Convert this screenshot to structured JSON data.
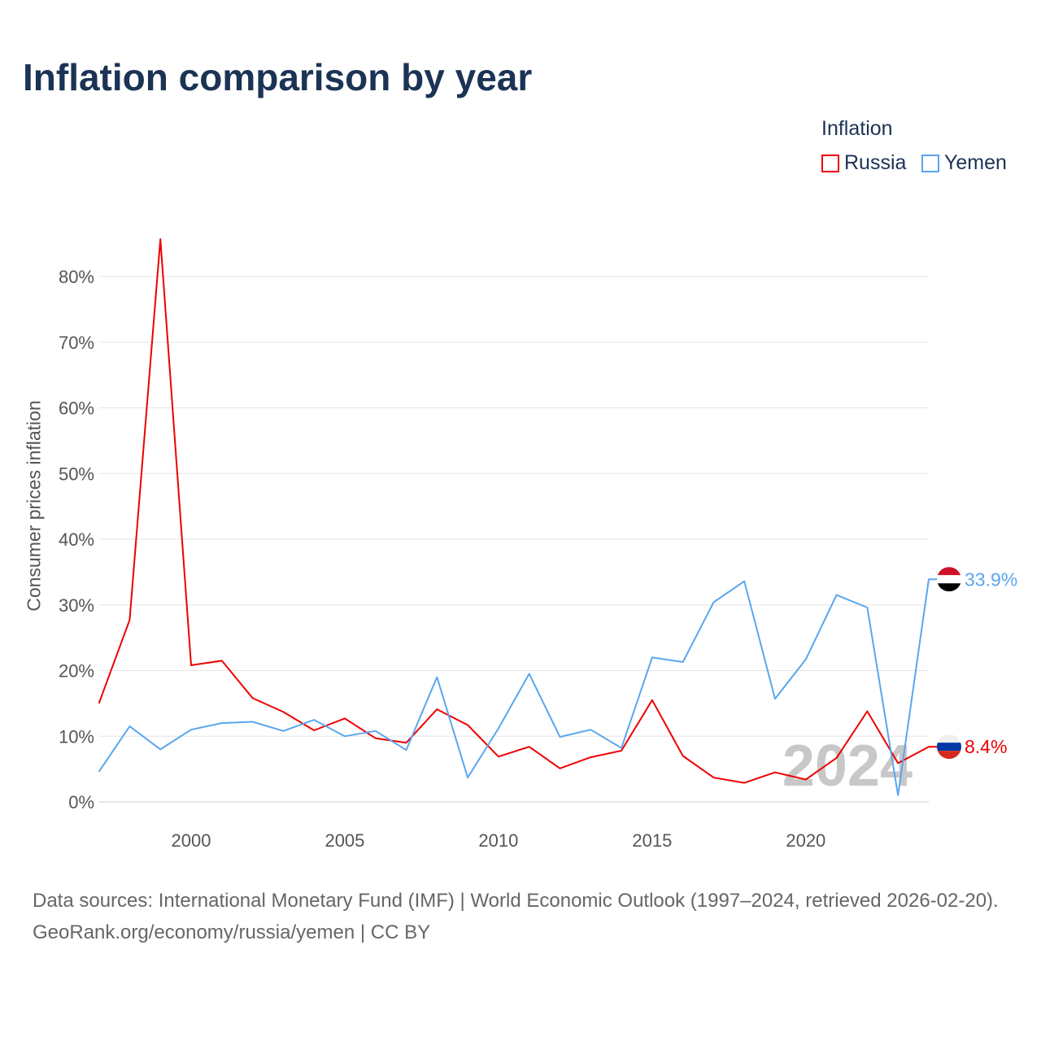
{
  "chart_data": {
    "type": "line",
    "title": "Inflation comparison by year",
    "ylabel": "Consumer prices inflation",
    "xlabel": "",
    "legend_title": "Inflation",
    "legend_position": "top-right",
    "ylim": [
      0,
      85
    ],
    "xlim": [
      1997,
      2024
    ],
    "yticks": [
      "0%",
      "10%",
      "20%",
      "30%",
      "40%",
      "50%",
      "60%",
      "70%",
      "80%"
    ],
    "xticks": [
      "2000",
      "2005",
      "2010",
      "2015",
      "2020"
    ],
    "x": [
      1997,
      1998,
      1999,
      2000,
      2001,
      2002,
      2003,
      2004,
      2005,
      2006,
      2007,
      2008,
      2009,
      2010,
      2011,
      2012,
      2013,
      2014,
      2015,
      2016,
      2017,
      2018,
      2019,
      2020,
      2021,
      2022,
      2023,
      2024
    ],
    "series": [
      {
        "name": "Russia",
        "color": "#ee0000",
        "end_label": "8.4%",
        "values": [
          15.0,
          27.7,
          85.7,
          20.8,
          21.5,
          15.8,
          13.7,
          10.9,
          12.7,
          9.7,
          9.0,
          14.1,
          11.7,
          6.9,
          8.4,
          5.1,
          6.8,
          7.8,
          15.5,
          7.0,
          3.7,
          2.9,
          4.5,
          3.4,
          6.7,
          13.8,
          5.9,
          8.4
        ]
      },
      {
        "name": "Yemen",
        "color": "#5aa6ee",
        "end_label": "33.9%",
        "values": [
          4.6,
          11.5,
          8.0,
          11.0,
          12.0,
          12.2,
          10.8,
          12.5,
          10.0,
          10.8,
          7.9,
          19.0,
          3.7,
          11.2,
          19.5,
          9.9,
          11.0,
          8.2,
          22.0,
          21.3,
          30.4,
          33.6,
          15.7,
          21.7,
          31.5,
          29.6,
          1.0,
          33.9
        ]
      }
    ],
    "watermark_year": "2024"
  },
  "footer": {
    "sources": "Data sources: International Monetary Fund (IMF) | World Economic Outlook (1997–2024, retrieved 2026-02-20).",
    "link": "GeoRank.org/economy/russia/yemen | CC BY"
  }
}
